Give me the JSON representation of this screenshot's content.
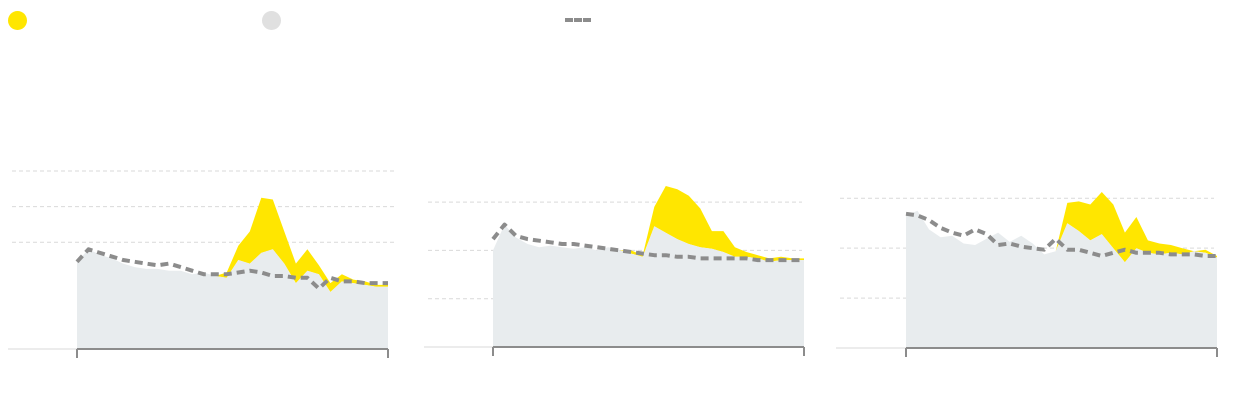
{
  "legend": {
    "items": [
      {
        "key": "excess",
        "label": "",
        "color": "#FFE600",
        "shape": "dot"
      },
      {
        "key": "baseline",
        "label": "",
        "color": "#E0E0E0",
        "shape": "dot"
      },
      {
        "key": "expected",
        "label": "",
        "color": "#8C8C8C",
        "shape": "dash"
      }
    ]
  },
  "colors": {
    "excess": "#FFE600",
    "area": "#E8ECEE",
    "expected": "#8C8C8C",
    "grid": "#D9D9D9",
    "axis": "#8C8C8C"
  },
  "chart_data": [
    {
      "type": "area",
      "title": "",
      "xlabel": "",
      "ylabel": "",
      "grid": true,
      "legend_position": "top-left",
      "ylim": [
        0,
        100
      ],
      "gridlines": [
        60,
        80,
        100
      ],
      "x": [
        1,
        2,
        3,
        4,
        5,
        6,
        7,
        8,
        9,
        10,
        11,
        12,
        13,
        14,
        15,
        16,
        17,
        18,
        19,
        20,
        21,
        22,
        23,
        24,
        25,
        26,
        27,
        28
      ],
      "series": [
        {
          "role": "actual",
          "values": [
            49,
            56,
            53,
            51,
            48,
            46,
            45,
            45,
            44,
            44,
            42,
            43,
            41,
            43,
            58,
            66,
            85,
            84,
            66,
            48,
            56,
            47,
            37,
            42,
            39,
            38,
            36,
            36
          ]
        },
        {
          "role": "floor",
          "values": [
            49,
            56,
            53,
            51,
            48,
            46,
            45,
            45,
            44,
            44,
            42,
            43,
            41,
            40,
            50,
            48,
            54,
            56,
            48,
            37,
            44,
            42,
            32,
            38,
            37,
            36,
            35,
            35
          ]
        },
        {
          "role": "expected",
          "values": [
            49,
            56,
            54,
            52,
            50,
            49,
            48,
            47,
            48,
            46,
            44,
            42,
            42,
            42,
            43,
            44,
            43,
            41,
            41,
            40,
            40,
            34,
            40,
            38,
            38,
            37,
            37,
            37
          ]
        }
      ]
    },
    {
      "type": "area",
      "title": "",
      "xlabel": "",
      "ylabel": "",
      "grid": true,
      "legend_position": "top-left",
      "ylim": [
        0,
        100
      ],
      "gridlines": [
        30,
        60,
        90
      ],
      "x": [
        1,
        2,
        3,
        4,
        5,
        6,
        7,
        8,
        9,
        10,
        11,
        12,
        13,
        14,
        15,
        16,
        17,
        18,
        19,
        20,
        21,
        22,
        23,
        24,
        25,
        26,
        27,
        28
      ],
      "series": [
        {
          "role": "actual",
          "values": [
            60,
            76,
            68,
            64,
            62,
            63,
            62,
            61,
            62,
            60,
            62,
            60,
            60,
            57,
            87,
            100,
            98,
            94,
            86,
            72,
            72,
            62,
            59,
            57,
            55,
            56,
            55,
            55
          ]
        },
        {
          "role": "floor",
          "values": [
            60,
            76,
            68,
            64,
            62,
            63,
            62,
            61,
            62,
            60,
            62,
            60,
            58,
            56,
            75,
            71,
            67,
            64,
            62,
            61,
            59,
            56,
            56,
            55,
            53,
            54,
            54,
            54
          ]
        },
        {
          "role": "expected",
          "values": [
            67,
            76,
            69,
            67,
            66,
            65,
            64,
            64,
            63,
            62,
            61,
            60,
            59,
            58,
            57,
            57,
            56,
            56,
            55,
            55,
            55,
            55,
            55,
            54,
            54,
            54,
            54,
            54
          ]
        }
      ]
    },
    {
      "type": "area",
      "title": "",
      "xlabel": "",
      "ylabel": "",
      "grid": true,
      "legend_position": "top-left",
      "ylim": [
        0,
        100
      ],
      "gridlines": [
        32,
        64,
        96
      ],
      "x": [
        1,
        2,
        3,
        4,
        5,
        6,
        7,
        8,
        9,
        10,
        11,
        12,
        13,
        14,
        15,
        16,
        17,
        18,
        19,
        20,
        21,
        22,
        23,
        24,
        25,
        26,
        27,
        28
      ],
      "series": [
        {
          "role": "actual",
          "values": [
            85,
            88,
            76,
            71,
            72,
            67,
            66,
            70,
            74,
            68,
            72,
            67,
            60,
            62,
            93,
            94,
            92,
            100,
            92,
            74,
            84,
            69,
            67,
            66,
            64,
            62,
            63,
            59
          ]
        },
        {
          "role": "floor",
          "values": [
            85,
            88,
            76,
            71,
            72,
            67,
            66,
            70,
            74,
            68,
            72,
            67,
            60,
            62,
            80,
            75,
            69,
            73,
            64,
            55,
            64,
            61,
            60,
            61,
            60,
            62,
            61,
            58
          ]
        },
        {
          "role": "expected",
          "values": [
            86,
            85,
            82,
            77,
            74,
            72,
            76,
            73,
            66,
            67,
            65,
            64,
            63,
            70,
            63,
            63,
            61,
            59,
            61,
            63,
            61,
            61,
            61,
            60,
            60,
            60,
            59,
            59
          ]
        }
      ]
    }
  ]
}
